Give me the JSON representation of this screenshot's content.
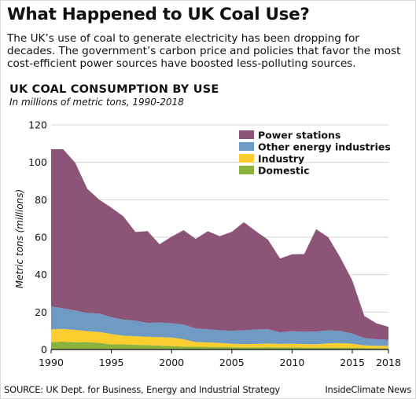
{
  "title": "What Happened to UK Coal Use?",
  "intro": "The UK’s use of coal to generate electricity has been dropping for decades. The government’s carbon price and policies that favor the most cost-efficient power sources have boosted less-polluting sources.",
  "source": "SOURCE: UK Dept. for Business, Energy and Industrial Strategy",
  "credit": "InsideClimate News",
  "chart_data": {
    "type": "area",
    "stacked": true,
    "title": "UK COAL CONSUMPTION BY USE",
    "subtitle": "In millions of metric tons, 1990-2018",
    "xlabel": "",
    "ylabel": "Metric tons (millions)",
    "xlim": [
      1990,
      2018
    ],
    "ylim": [
      0,
      120
    ],
    "x_ticks": [
      "1990",
      "1995",
      "2000",
      "2005",
      "2010",
      "2015",
      "2018"
    ],
    "y_ticks": [
      "0",
      "20",
      "40",
      "60",
      "80",
      "100",
      "120"
    ],
    "grid": true,
    "legend_position": "top-right",
    "x": [
      1990,
      1991,
      1992,
      1993,
      1994,
      1995,
      1996,
      1997,
      1998,
      1999,
      2000,
      2001,
      2002,
      2003,
      2004,
      2005,
      2006,
      2007,
      2008,
      2009,
      2010,
      2011,
      2012,
      2013,
      2014,
      2015,
      2016,
      2017,
      2018
    ],
    "series": [
      {
        "name": "Domestic",
        "color": "#8ab23c",
        "values": [
          4.0,
          4.2,
          3.9,
          4.0,
          3.5,
          2.8,
          2.7,
          2.5,
          2.3,
          2.1,
          1.8,
          1.6,
          1.5,
          1.4,
          1.3,
          1.2,
          1.1,
          1.1,
          1.2,
          1.1,
          1.1,
          1.0,
          1.0,
          1.0,
          1.0,
          0.9,
          0.8,
          0.7,
          0.7
        ]
      },
      {
        "name": "Industry",
        "color": "#fbcd2e",
        "values": [
          6.8,
          6.8,
          6.6,
          5.8,
          5.9,
          5.5,
          4.7,
          4.6,
          4.5,
          4.5,
          4.6,
          3.9,
          2.5,
          2.4,
          2.2,
          1.9,
          1.8,
          1.9,
          2.0,
          1.9,
          2.0,
          1.9,
          1.8,
          2.3,
          2.4,
          2.2,
          1.4,
          1.3,
          1.3
        ]
      },
      {
        "name": "Other energy industries",
        "color": "#6f9ac4",
        "values": [
          12.2,
          11.0,
          10.4,
          9.7,
          9.8,
          8.9,
          8.6,
          8.3,
          7.4,
          7.8,
          7.6,
          7.8,
          7.2,
          7.0,
          6.8,
          6.9,
          7.4,
          7.7,
          7.6,
          6.2,
          6.7,
          6.6,
          6.8,
          7.0,
          6.5,
          5.4,
          3.9,
          3.5,
          3.2
        ]
      },
      {
        "name": "Power stations",
        "color": "#8c5577",
        "values": [
          84.0,
          85.0,
          78.9,
          66.4,
          60.8,
          58.6,
          55.1,
          47.4,
          49.1,
          41.8,
          46.3,
          50.5,
          47.9,
          52.4,
          50.3,
          52.9,
          57.7,
          52.5,
          47.9,
          39.4,
          41.1,
          41.5,
          54.7,
          49.7,
          39.3,
          28.3,
          11.8,
          8.5,
          6.9
        ]
      }
    ]
  }
}
